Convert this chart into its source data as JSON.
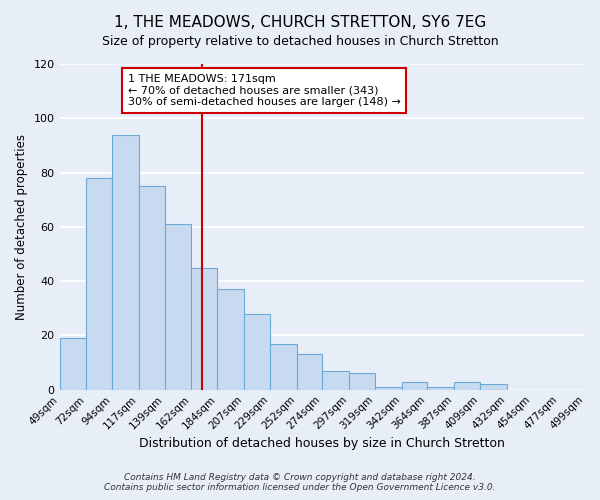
{
  "title": "1, THE MEADOWS, CHURCH STRETTON, SY6 7EG",
  "subtitle": "Size of property relative to detached houses in Church Stretton",
  "xlabel": "Distribution of detached houses by size in Church Stretton",
  "ylabel": "Number of detached properties",
  "all_values": [
    19,
    78,
    94,
    75,
    61,
    45,
    37,
    28,
    17,
    13,
    7,
    6,
    1,
    3,
    1,
    3,
    2,
    0,
    0,
    0
  ],
  "bar_labels": [
    "49sqm",
    "72sqm",
    "94sqm",
    "117sqm",
    "139sqm",
    "162sqm",
    "184sqm",
    "207sqm",
    "229sqm",
    "252sqm",
    "274sqm",
    "297sqm",
    "319sqm",
    "342sqm",
    "364sqm",
    "387sqm",
    "409sqm",
    "432sqm",
    "454sqm",
    "477sqm",
    "499sqm"
  ],
  "bin_edges": [
    49,
    72,
    94,
    117,
    139,
    162,
    184,
    207,
    229,
    252,
    274,
    297,
    319,
    342,
    364,
    387,
    409,
    432,
    454,
    477,
    499
  ],
  "bar_color": "#c8daf0",
  "bar_edge_color": "#6aaad4",
  "ylim": [
    0,
    120
  ],
  "yticks": [
    0,
    20,
    40,
    60,
    80,
    100,
    120
  ],
  "vline_x": 171,
  "vline_color": "#cc0000",
  "annotation_title": "1 THE MEADOWS: 171sqm",
  "annotation_line1": "← 70% of detached houses are smaller (343)",
  "annotation_line2": "30% of semi-detached houses are larger (148) →",
  "annotation_box_facecolor": "#ffffff",
  "annotation_box_edgecolor": "#cc0000",
  "footer1": "Contains HM Land Registry data © Crown copyright and database right 2024.",
  "footer2": "Contains public sector information licensed under the Open Government Licence v3.0.",
  "background_color": "#e8eef8",
  "plot_bg_color": "#e8eef8",
  "grid_color": "#ffffff",
  "title_fontsize": 11,
  "subtitle_fontsize": 9
}
